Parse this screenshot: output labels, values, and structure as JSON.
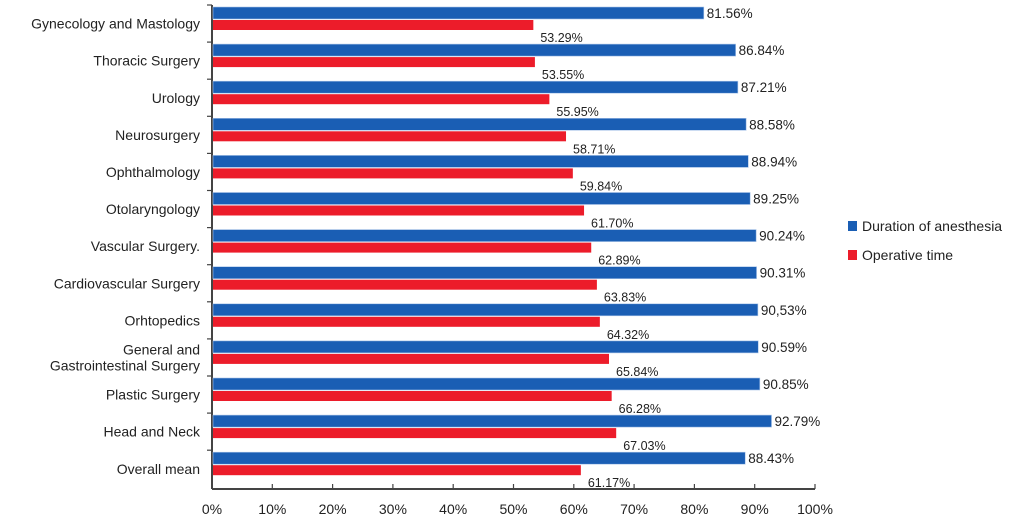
{
  "chart_data": {
    "type": "bar",
    "orientation": "horizontal",
    "title": "",
    "xlabel": "",
    "ylabel": "",
    "xlim": [
      0,
      100
    ],
    "x_ticks": [
      "0%",
      "10%",
      "20%",
      "30%",
      "40%",
      "50%",
      "60%",
      "70%",
      "80%",
      "90%",
      "100%"
    ],
    "grid": false,
    "legend_position": "right",
    "categories": [
      [
        "Gynecology and Mastology"
      ],
      [
        "Thoracic Surgery"
      ],
      [
        "Urology"
      ],
      [
        "Neurosurgery"
      ],
      [
        "Ophthalmology"
      ],
      [
        "Otolaryngology"
      ],
      [
        "Vascular Surgery."
      ],
      [
        "Cardiovascular Surgery"
      ],
      [
        "Orhtopedics"
      ],
      [
        "General and",
        "Gastrointestinal Surgery"
      ],
      [
        "Plastic Surgery"
      ],
      [
        "Head and Neck"
      ],
      [
        "Overall mean"
      ]
    ],
    "series": [
      {
        "name": "Duration of anesthesia",
        "color": "#1a5eb4",
        "values": [
          81.56,
          86.84,
          87.21,
          88.58,
          88.94,
          89.25,
          90.24,
          90.31,
          90.53,
          90.59,
          90.85,
          92.79,
          88.43
        ],
        "labels": [
          "81.56%",
          "86.84%",
          "87.21%",
          "88.58%",
          "88.94%",
          "89.25%",
          "90.24%",
          "90.31%",
          "90,53%",
          "90.59%",
          "90.85%",
          "92.79%",
          "88.43%"
        ]
      },
      {
        "name": "Operative time",
        "color": "#ec1c2a",
        "values": [
          53.29,
          53.55,
          55.95,
          58.71,
          59.84,
          61.7,
          62.89,
          63.83,
          64.32,
          65.84,
          66.28,
          67.03,
          61.17
        ],
        "labels": [
          "53.29%",
          "53.55%",
          "55.95%",
          "58.71%",
          "59.84%",
          "61.70%",
          "62.89%",
          "63.83%",
          "64.32%",
          "65.84%",
          "66.28%",
          "67.03%",
          "61.17%"
        ]
      }
    ]
  }
}
